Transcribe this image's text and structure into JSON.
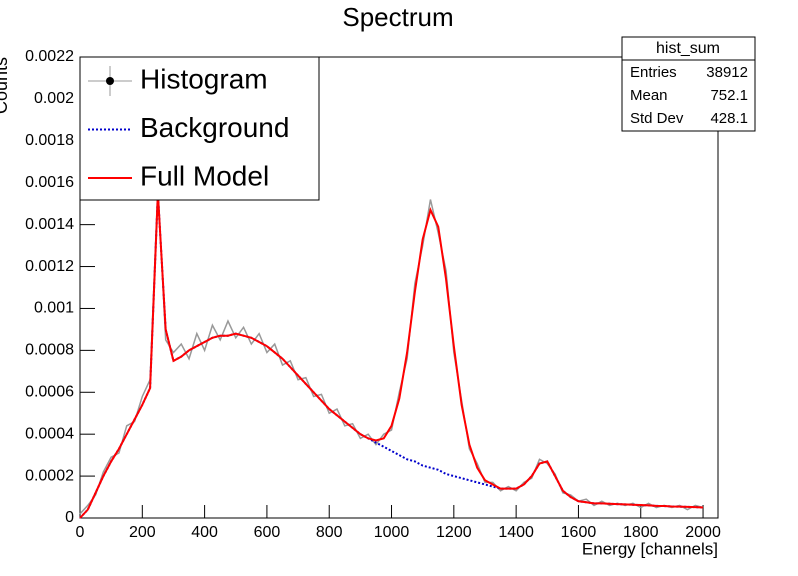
{
  "chart_data": {
    "type": "line",
    "title": "Spectrum",
    "x_label": "Energy [channels]",
    "y_label": "Counts",
    "xlim": [
      0,
      2048
    ],
    "xticks": [
      0,
      200,
      400,
      600,
      800,
      1000,
      1200,
      1400,
      1600,
      1800,
      2000
    ],
    "ylim": [
      0,
      0.0022
    ],
    "yticks": [
      0,
      0.0002,
      0.0004,
      0.0006,
      0.0008,
      0.001,
      0.0012,
      0.0014,
      0.0016,
      0.0018,
      0.002,
      0.0022
    ],
    "legend": "top-left",
    "x": [
      0,
      25,
      50,
      75,
      100,
      125,
      150,
      175,
      200,
      225,
      250,
      275,
      300,
      325,
      350,
      375,
      400,
      425,
      450,
      475,
      500,
      525,
      550,
      575,
      600,
      625,
      650,
      675,
      700,
      725,
      750,
      775,
      800,
      825,
      850,
      875,
      900,
      925,
      950,
      975,
      1000,
      1025,
      1050,
      1075,
      1100,
      1125,
      1150,
      1175,
      1200,
      1225,
      1250,
      1275,
      1300,
      1325,
      1350,
      1375,
      1400,
      1425,
      1450,
      1475,
      1500,
      1525,
      1550,
      1575,
      1600,
      1625,
      1650,
      1675,
      1700,
      1725,
      1750,
      1775,
      1800,
      1825,
      1850,
      1875,
      1900,
      1925,
      1950,
      1975,
      2000
    ],
    "series": [
      {
        "name": "Histogram",
        "color": "#999999",
        "style": "histogram",
        "values": [
          2e-05,
          6e-05,
          0.00011,
          0.00022,
          0.00029,
          0.00031,
          0.00044,
          0.00046,
          0.00058,
          0.00066,
          0.00158,
          0.00085,
          0.00079,
          0.00083,
          0.00076,
          0.00088,
          0.0008,
          0.00092,
          0.00085,
          0.00094,
          0.00086,
          0.00091,
          0.00083,
          0.00088,
          0.00079,
          0.00083,
          0.00073,
          0.00075,
          0.00066,
          0.00067,
          0.00058,
          0.00059,
          0.0005,
          0.00052,
          0.00044,
          0.00045,
          0.00038,
          0.0004,
          0.00035,
          0.0004,
          0.00042,
          0.0006,
          0.00076,
          0.00112,
          0.0013,
          0.00152,
          0.00136,
          0.00118,
          0.00079,
          0.00056,
          0.00033,
          0.00026,
          0.00017,
          0.00017,
          0.00013,
          0.00015,
          0.00013,
          0.00017,
          0.00019,
          0.00028,
          0.00026,
          0.00021,
          0.00012,
          0.00011,
          8e-05,
          9e-05,
          6e-05,
          8e-05,
          6e-05,
          7e-05,
          6e-05,
          7e-05,
          5e-05,
          7e-05,
          5e-05,
          6e-05,
          5e-05,
          6e-05,
          4e-05,
          6e-05,
          5e-05
        ]
      },
      {
        "name": "Background",
        "color": "#0000cc",
        "style": "dotted",
        "values": [
          0,
          4e-05,
          0.00012,
          0.0002,
          0.00027,
          0.00033,
          0.0004,
          0.00047,
          0.00054,
          0.00062,
          0.00155,
          0.0009,
          0.00075,
          0.00077,
          0.0008,
          0.00082,
          0.00084,
          0.00086,
          0.00087,
          0.00087,
          0.00088,
          0.00087,
          0.00086,
          0.00084,
          0.00082,
          0.00079,
          0.00076,
          0.00072,
          0.00068,
          0.00064,
          0.0006,
          0.00056,
          0.00052,
          0.00049,
          0.00046,
          0.00043,
          0.0004,
          0.00038,
          0.00036,
          0.00034,
          0.00032,
          0.0003,
          0.00028,
          0.00027,
          0.00025,
          0.00024,
          0.00023,
          0.00021,
          0.0002,
          0.00019,
          0.00018,
          0.00017,
          0.00016,
          0.00015,
          0.00014,
          0.00014,
          0.00014,
          0.00016,
          0.0002,
          0.00026,
          0.00027,
          0.0002,
          0.00013,
          0.0001,
          8e-05,
          7.5e-05,
          7e-05,
          7e-05,
          6.8e-05,
          6.6e-05,
          6.5e-05,
          6.3e-05,
          6.2e-05,
          6e-05,
          5.8e-05,
          5.7e-05,
          5.5e-05,
          5.4e-05,
          5.3e-05,
          5.2e-05,
          5e-05
        ]
      },
      {
        "name": "Full Model",
        "color": "#ff0000",
        "style": "solid",
        "values": [
          0,
          4e-05,
          0.00012,
          0.0002,
          0.00027,
          0.00033,
          0.0004,
          0.00047,
          0.00054,
          0.00062,
          0.00155,
          0.0009,
          0.00075,
          0.00077,
          0.0008,
          0.00082,
          0.00084,
          0.00086,
          0.00087,
          0.00087,
          0.00088,
          0.00087,
          0.00086,
          0.00084,
          0.00082,
          0.00079,
          0.00076,
          0.00072,
          0.00068,
          0.00064,
          0.0006,
          0.00056,
          0.00052,
          0.00049,
          0.00046,
          0.00043,
          0.0004,
          0.00038,
          0.00037,
          0.00038,
          0.00044,
          0.00057,
          0.00079,
          0.00108,
          0.00133,
          0.00147,
          0.00139,
          0.00114,
          0.00082,
          0.00054,
          0.00035,
          0.00024,
          0.00018,
          0.00016,
          0.00014,
          0.00014,
          0.00014,
          0.00016,
          0.0002,
          0.00026,
          0.00027,
          0.0002,
          0.00013,
          0.0001,
          8e-05,
          7.5e-05,
          7e-05,
          7e-05,
          6.8e-05,
          6.6e-05,
          6.5e-05,
          6.3e-05,
          6.2e-05,
          6e-05,
          5.8e-05,
          5.7e-05,
          5.5e-05,
          5.4e-05,
          5.3e-05,
          5.2e-05,
          5e-05
        ]
      }
    ],
    "stats": {
      "title": "hist_sum",
      "rows": [
        {
          "label": "Entries",
          "value": 38912
        },
        {
          "label": "Mean",
          "value": 752.1
        },
        {
          "label": "Std Dev",
          "value": 428.1
        }
      ]
    }
  }
}
